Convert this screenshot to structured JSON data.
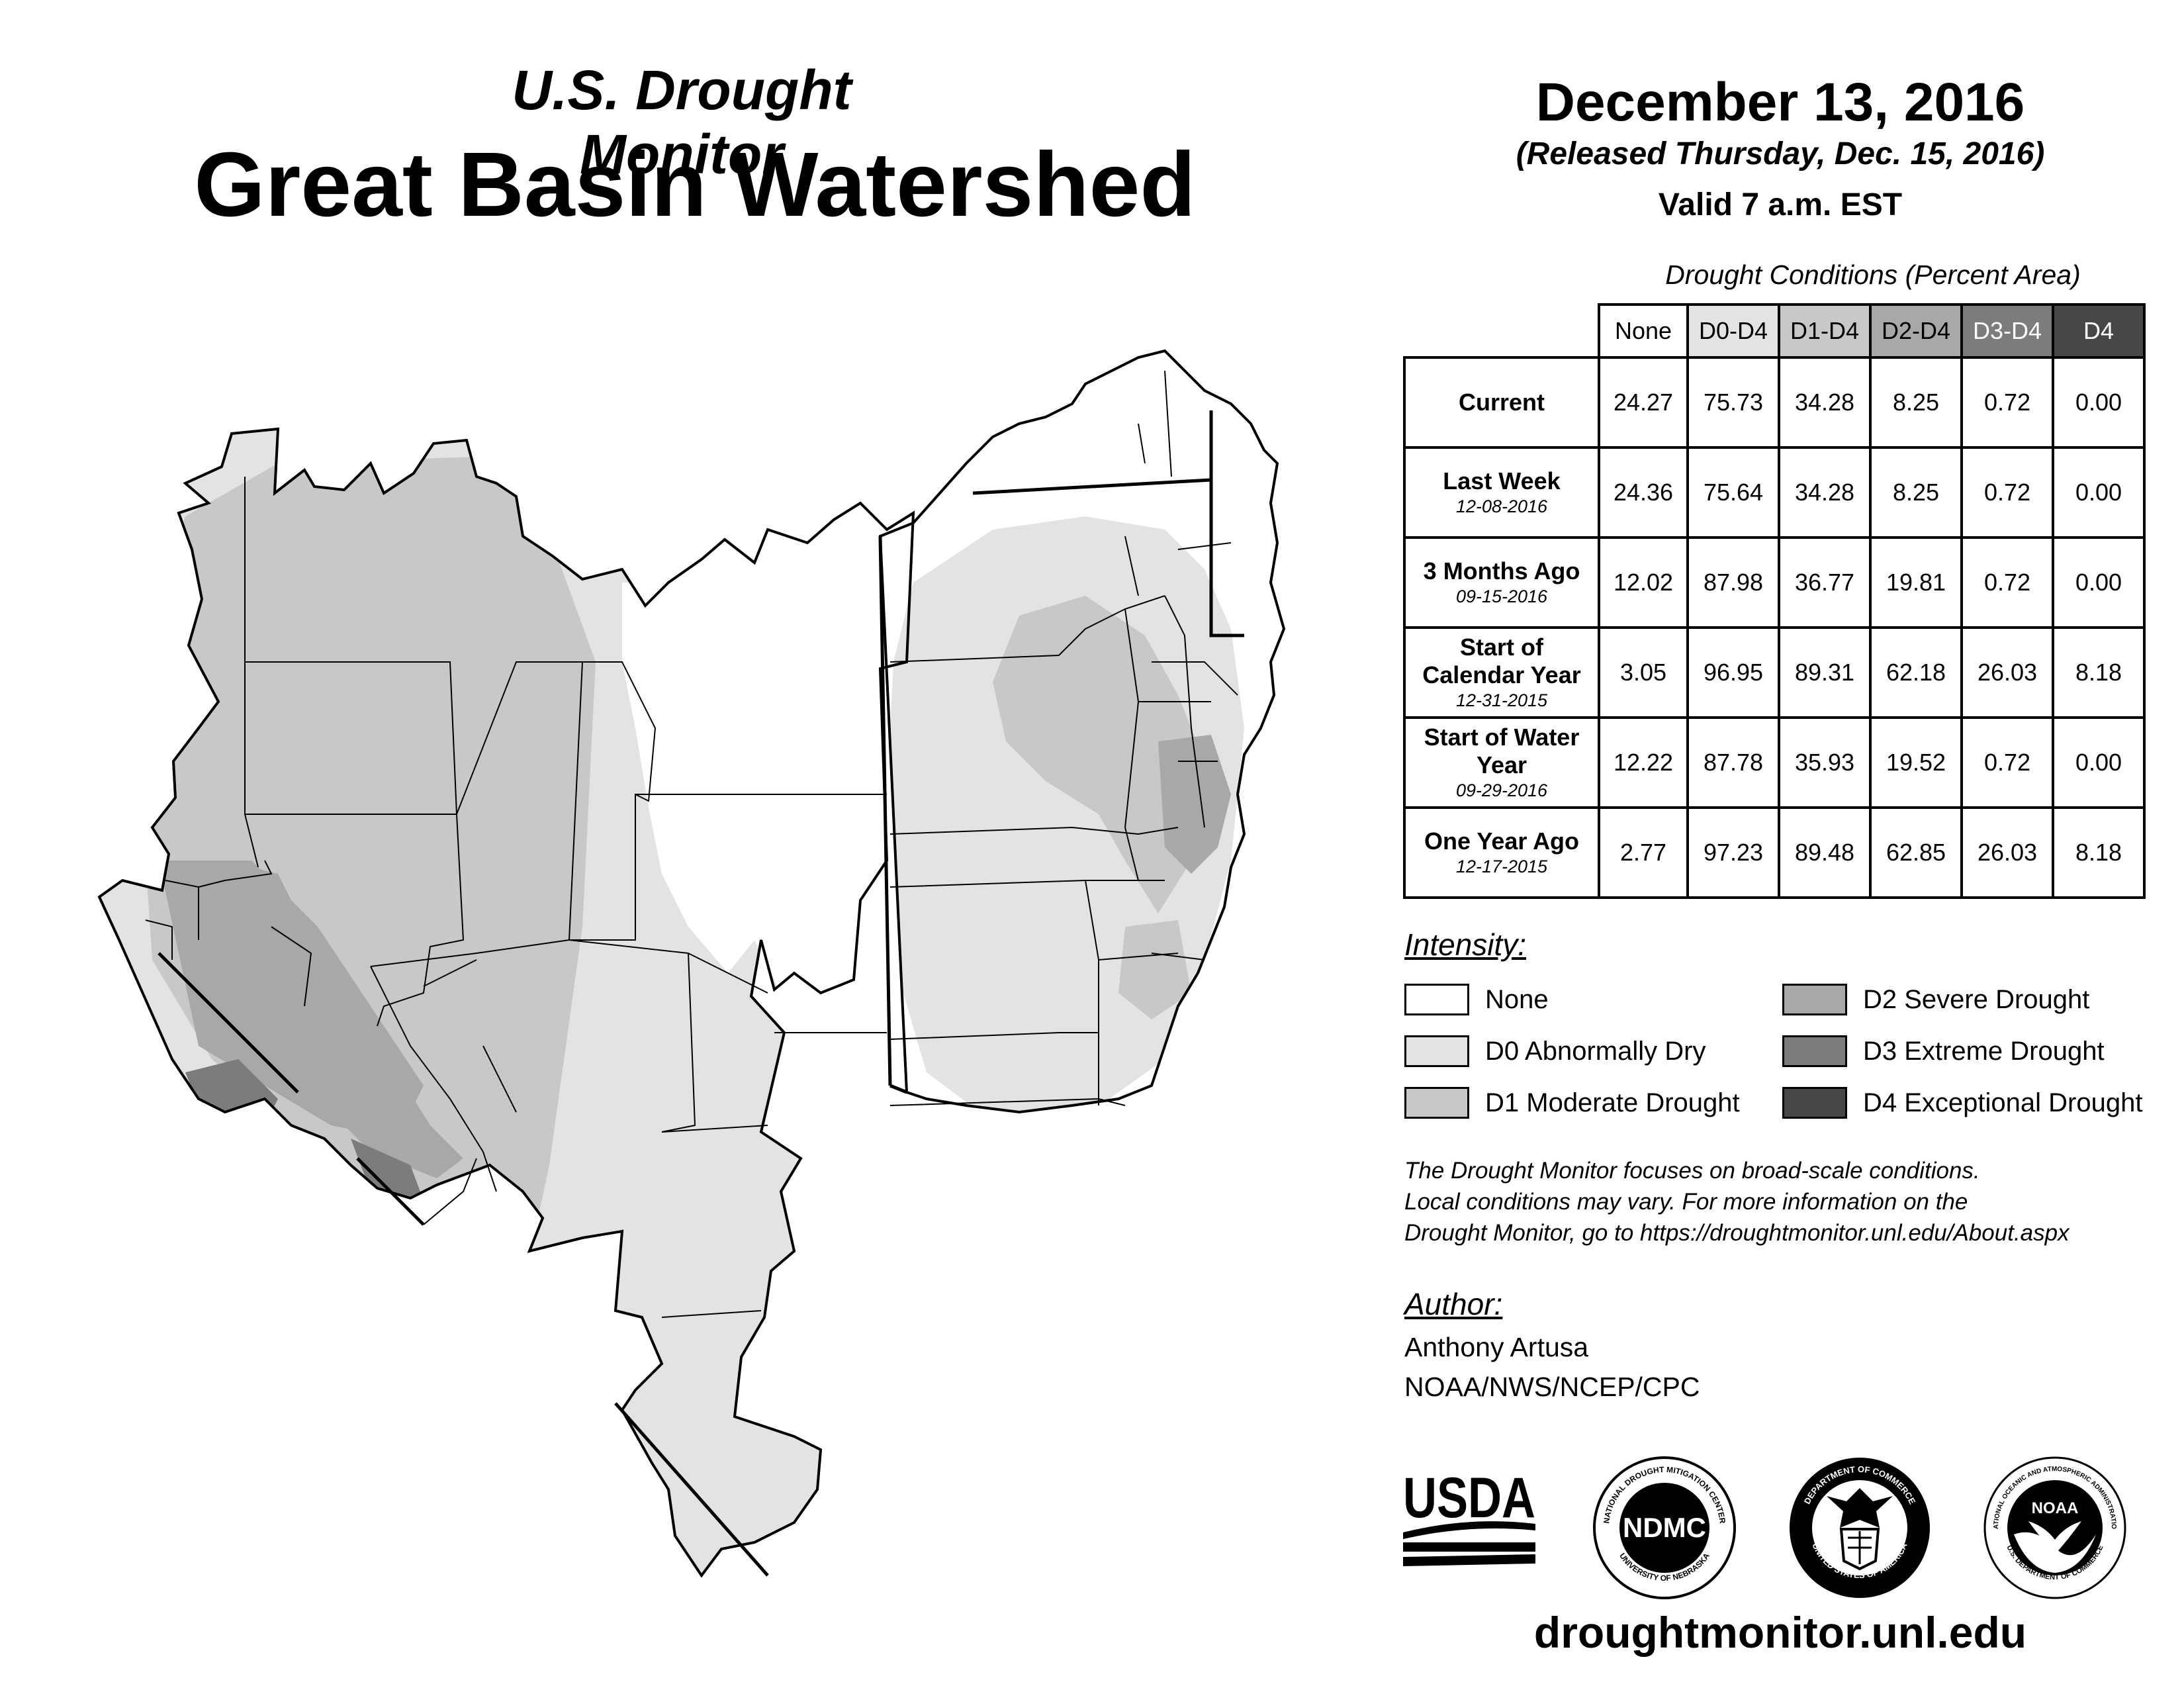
{
  "header": {
    "subtitle": "U.S. Drought Monitor",
    "title": "Great Basin Watershed",
    "date": "December 13, 2016",
    "released": "(Released Thursday, Dec. 15, 2016)",
    "valid": "Valid 7 a.m. EST"
  },
  "table": {
    "title": "Drought Conditions (Percent Area)",
    "columns": [
      "None",
      "D0-D4",
      "D1-D4",
      "D2-D4",
      "D3-D4",
      "D4"
    ],
    "rows": [
      {
        "label": "Current",
        "date": "",
        "values": [
          "24.27",
          "75.73",
          "34.28",
          "8.25",
          "0.72",
          "0.00"
        ]
      },
      {
        "label": "Last Week",
        "date": "12-08-2016",
        "values": [
          "24.36",
          "75.64",
          "34.28",
          "8.25",
          "0.72",
          "0.00"
        ]
      },
      {
        "label": "3 Months Ago",
        "date": "09-15-2016",
        "values": [
          "12.02",
          "87.98",
          "36.77",
          "19.81",
          "0.72",
          "0.00"
        ]
      },
      {
        "label": "Start of Calendar Year",
        "date": "12-31-2015",
        "values": [
          "3.05",
          "96.95",
          "89.31",
          "62.18",
          "26.03",
          "8.18"
        ]
      },
      {
        "label": "Start of Water Year",
        "date": "09-29-2016",
        "values": [
          "12.22",
          "87.78",
          "35.93",
          "19.52",
          "0.72",
          "0.00"
        ]
      },
      {
        "label": "One Year Ago",
        "date": "12-17-2015",
        "values": [
          "2.77",
          "97.23",
          "89.48",
          "62.85",
          "26.03",
          "8.18"
        ]
      }
    ]
  },
  "legend": {
    "title": "Intensity:",
    "items": [
      {
        "label": "None",
        "color": "#ffffff"
      },
      {
        "label": "D0 Abnormally Dry",
        "color": "#e3e3e3"
      },
      {
        "label": "D1 Moderate Drought",
        "color": "#c8c8c8"
      },
      {
        "label": "D2 Severe Drought",
        "color": "#a8a8a8"
      },
      {
        "label": "D3 Extreme Drought",
        "color": "#7c7c7c"
      },
      {
        "label": "D4 Exceptional Drought",
        "color": "#474747"
      }
    ]
  },
  "note": {
    "line1": "The Drought Monitor focuses on broad-scale conditions.",
    "line2": "Local conditions may vary. For more information on the",
    "line3": "Drought Monitor, go to https://droughtmonitor.unl.edu/About.aspx"
  },
  "author": {
    "title": "Author:",
    "name": "Anthony Artusa",
    "org": "NOAA/NWS/NCEP/CPC"
  },
  "logos": {
    "usda": "USDA",
    "ndmc": "NDMC",
    "ndmc_top": "NATIONAL DROUGHT MITIGATION CENTER",
    "ndmc_bottom": "UNIVERSITY OF NEBRASKA",
    "doc_top": "DEPARTMENT OF COMMERCE",
    "doc_bottom": "UNITED STATES OF AMERICA",
    "noaa": "NOAA",
    "noaa_ring": "NATIONAL OCEANIC AND ATMOSPHERIC ADMINISTRATION",
    "noaa_bottom": "U.S. DEPARTMENT OF COMMERCE"
  },
  "footer": {
    "url": "droughtmonitor.unl.edu"
  }
}
